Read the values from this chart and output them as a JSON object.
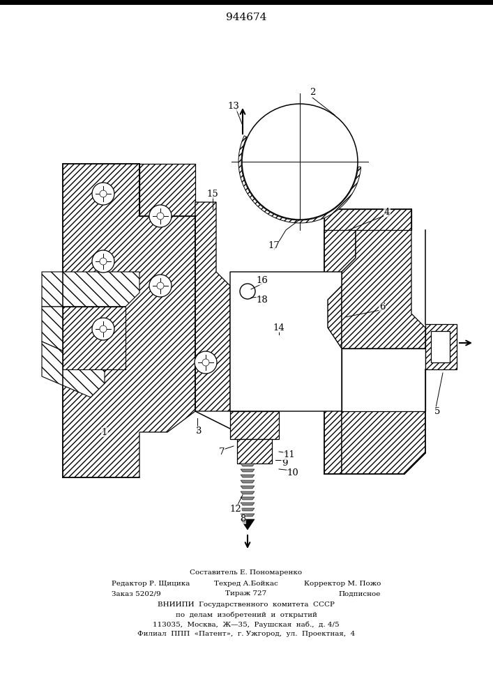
{
  "patent_number": "944674",
  "background_color": "#ffffff",
  "fig_width": 7.07,
  "fig_height": 10.0,
  "dpi": 100,
  "footer": {
    "line0": "Составитель Е. Пономаренко",
    "line1_left": "Редактор Р. Щицика",
    "line1_mid": "Техред А.Бойкас",
    "line1_right": "Корректор М. Пожо",
    "line2_left": "Заказ 5202/9",
    "line2_mid": "Тираж 727",
    "line2_right": "Подписное",
    "line3": "ВНИИПИ  Государственного  комитета  СССР",
    "line4": "по  делам  изобретений  и  открытий",
    "line5": "113035,  Москва,  Ж—35,  Раушская  наб.,  д. 4/5",
    "line6": "Филиал  ППП  «Патент»,  г. Ужгород,  ул.  Проектная,  4"
  }
}
